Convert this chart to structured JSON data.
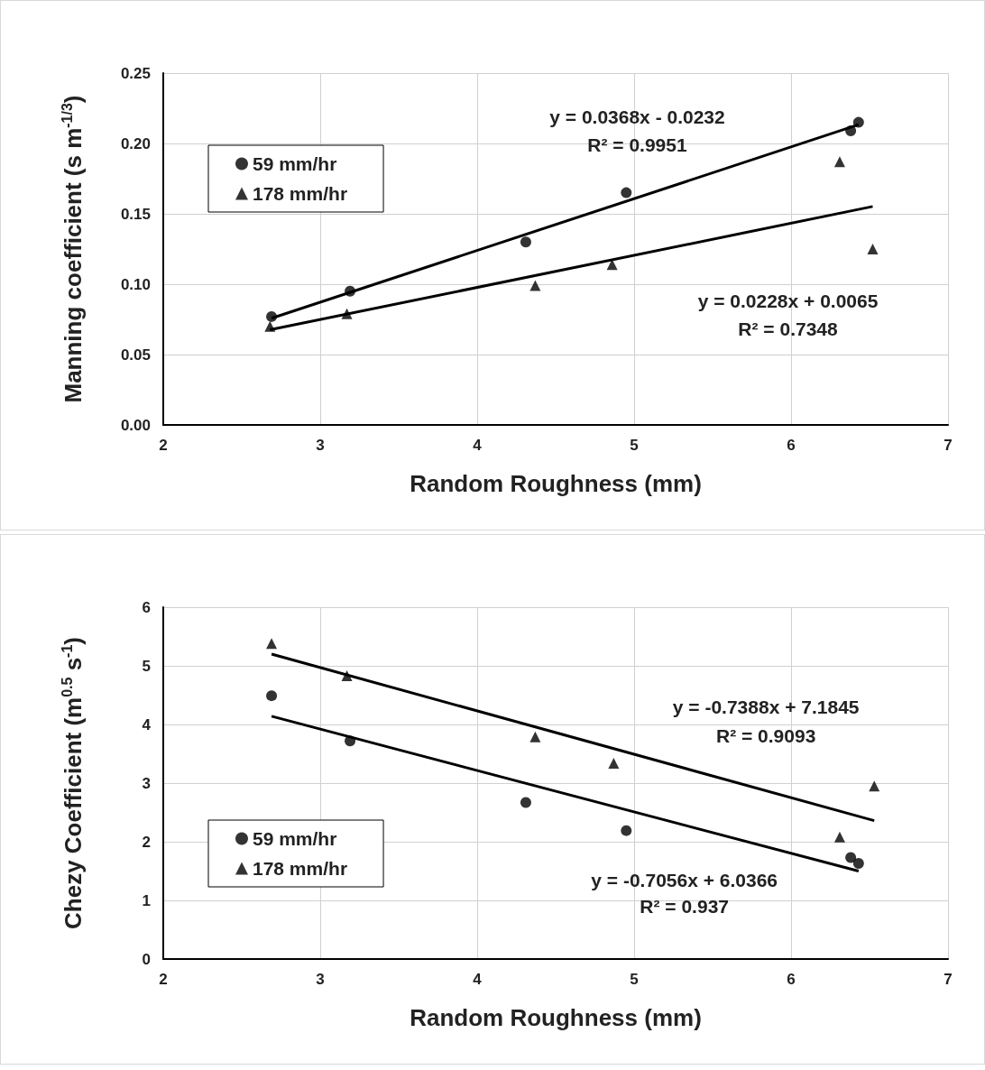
{
  "chart_data": [
    {
      "type": "scatter",
      "xlabel": "Random Roughness (mm)",
      "ylabel": "Manning coefficient (s m$^{-1/3}$)",
      "xlim": [
        2,
        7
      ],
      "xticks": [
        2,
        3,
        4,
        5,
        6,
        7
      ],
      "ylim": [
        0,
        0.25
      ],
      "yticks": [
        {
          "value": 0,
          "label": "0.00"
        },
        {
          "value": 0.05,
          "label": "0.05"
        },
        {
          "value": 0.1,
          "label": "0.10"
        },
        {
          "value": 0.15,
          "label": "0.15"
        },
        {
          "value": 0.2,
          "label": "0.20"
        },
        {
          "value": 0.25,
          "label": "0.25"
        }
      ],
      "grid": true,
      "legend": "top left",
      "series": [
        {
          "name": "59 mm/hr",
          "color": "#000000",
          "marker": "circle",
          "x": [
            2.69,
            3.19,
            4.31,
            4.95,
            6.38,
            6.43
          ],
          "values": [
            0.077,
            0.095,
            0.13,
            0.165,
            0.209,
            0.215
          ]
        },
        {
          "name": "178 mm/hr",
          "color": "#000000",
          "marker": "triangle",
          "x": [
            2.68,
            3.17,
            4.37,
            4.86,
            6.31,
            6.52
          ],
          "values": [
            0.07,
            0.079,
            0.099,
            0.114,
            0.187,
            0.125
          ]
        },
        {
          "type": "line",
          "color": "#000000",
          "marker": "none",
          "line_style": "solid",
          "x": [
            2.69,
            6.43
          ],
          "values": [
            0.0758,
            0.2134
          ]
        },
        {
          "type": "line",
          "color": "#000000",
          "marker": "none",
          "line_style": "solid",
          "x": [
            2.68,
            6.52
          ],
          "values": [
            0.0676,
            0.1552
          ]
        }
      ],
      "annotations": [
        "y = 0.0368x - 0.0232",
        "R² = 0.9951",
        "y = 0.0228x + 0.0065",
        "R² = 0.7348"
      ]
    },
    {
      "type": "scatter",
      "xlabel": "Random Roughness (mm)",
      "ylabel": "Chezy Coefficient (m$^{0.5}$ s$^{-1}$)",
      "xlim": [
        2,
        7
      ],
      "xticks": [
        2,
        3,
        4,
        5,
        6,
        7
      ],
      "ylim": [
        0,
        6
      ],
      "yticks": [
        0,
        1,
        2,
        3,
        4,
        5,
        6
      ],
      "grid": true,
      "legend": "bottom left",
      "series": [
        {
          "name": "59 mm/hr",
          "color": "#000000",
          "marker": "circle",
          "x": [
            2.69,
            3.19,
            4.31,
            4.95,
            6.38,
            6.43
          ],
          "values": [
            4.49,
            3.72,
            2.67,
            2.19,
            1.73,
            1.63
          ]
        },
        {
          "name": "178 mm/hr",
          "color": "#000000",
          "marker": "triangle",
          "x": [
            2.69,
            3.17,
            4.37,
            4.87,
            6.31,
            6.53
          ],
          "values": [
            5.38,
            4.83,
            3.79,
            3.34,
            2.08,
            2.95
          ]
        },
        {
          "type": "line",
          "color": "#000000",
          "marker": "none",
          "line_style": "solid",
          "x": [
            2.69,
            6.53
          ],
          "values": [
            5.2,
            2.36
          ]
        },
        {
          "type": "line",
          "color": "#000000",
          "marker": "none",
          "line_style": "solid",
          "x": [
            2.69,
            6.43
          ],
          "values": [
            4.14,
            1.5
          ]
        }
      ],
      "annotations": [
        "y = -0.7388x + 7.1845",
        "R² = 0.9093",
        "y = -0.7056x + 6.0366",
        "R² = 0.937"
      ]
    }
  ]
}
